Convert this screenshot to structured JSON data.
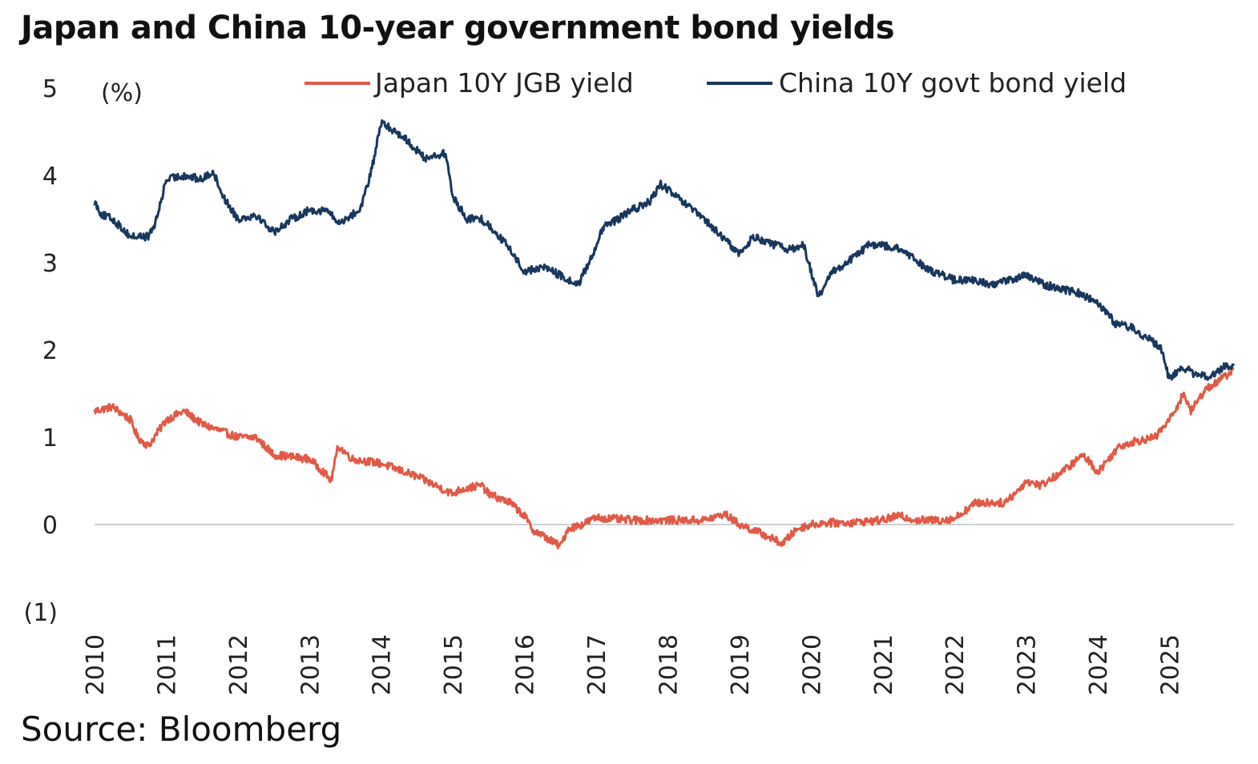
{
  "title": "Japan and China 10-year government bond yields",
  "source": "Source: Bloomberg",
  "chart_data": {
    "type": "line",
    "title": "Japan and China 10-year government bond yields",
    "ylabel": "(%)",
    "ylim": [
      -1,
      5
    ],
    "yticks": [
      5,
      4,
      3,
      2,
      1,
      0,
      -1
    ],
    "ytick_labels": [
      "5",
      "4",
      "3",
      "2",
      "1",
      "0",
      "(1)"
    ],
    "xlim": [
      2010,
      2025.9
    ],
    "xticks": [
      2010,
      2011,
      2012,
      2013,
      2014,
      2015,
      2016,
      2017,
      2018,
      2019,
      2020,
      2021,
      2022,
      2023,
      2024,
      2025
    ],
    "xtick_labels": [
      "2010",
      "2011",
      "2012",
      "2013",
      "2014",
      "2015",
      "2016",
      "2017",
      "2018",
      "2019",
      "2020",
      "2021",
      "2022",
      "2023",
      "2024",
      "2025"
    ],
    "zero_line": true,
    "legend_position": "top",
    "series": [
      {
        "name": "Japan 10Y JGB yield",
        "color": "#e05a45",
        "x": [
          2010.0,
          2010.25,
          2010.5,
          2010.6,
          2010.75,
          2011.0,
          2011.25,
          2011.5,
          2012.0,
          2012.25,
          2012.5,
          2013.0,
          2013.2,
          2013.3,
          2013.4,
          2013.6,
          2014.0,
          2014.5,
          2015.0,
          2015.1,
          2015.4,
          2015.5,
          2015.8,
          2016.0,
          2016.1,
          2016.3,
          2016.5,
          2016.6,
          2016.8,
          2017.0,
          2017.5,
          2018.0,
          2018.5,
          2018.8,
          2019.0,
          2019.3,
          2019.6,
          2019.8,
          2020.0,
          2020.2,
          2020.5,
          2021.0,
          2021.2,
          2021.5,
          2021.8,
          2022.0,
          2022.3,
          2022.7,
          2022.9,
          2023.0,
          2023.2,
          2023.5,
          2023.8,
          2024.0,
          2024.1,
          2024.3,
          2024.5,
          2024.8,
          2025.0,
          2025.2,
          2025.3,
          2025.5,
          2025.7,
          2025.9
        ],
        "values": [
          1.3,
          1.35,
          1.2,
          1.0,
          0.9,
          1.2,
          1.3,
          1.15,
          1.0,
          1.0,
          0.8,
          0.75,
          0.6,
          0.5,
          0.9,
          0.75,
          0.7,
          0.55,
          0.35,
          0.4,
          0.45,
          0.35,
          0.25,
          0.1,
          -0.05,
          -0.15,
          -0.25,
          -0.05,
          0.0,
          0.08,
          0.05,
          0.05,
          0.05,
          0.12,
          0.0,
          -0.1,
          -0.22,
          -0.05,
          0.0,
          0.02,
          0.02,
          0.05,
          0.1,
          0.05,
          0.05,
          0.07,
          0.25,
          0.25,
          0.4,
          0.5,
          0.45,
          0.6,
          0.8,
          0.6,
          0.7,
          0.9,
          0.95,
          1.0,
          1.2,
          1.5,
          1.3,
          1.55,
          1.65,
          1.78
        ]
      },
      {
        "name": "China 10Y govt bond yield",
        "color": "#17375e",
        "x": [
          2010.0,
          2010.1,
          2010.25,
          2010.5,
          2010.75,
          2010.85,
          2011.0,
          2011.25,
          2011.5,
          2011.65,
          2011.8,
          2012.0,
          2012.25,
          2012.5,
          2012.75,
          2013.0,
          2013.25,
          2013.4,
          2013.7,
          2013.85,
          2014.0,
          2014.3,
          2014.6,
          2014.9,
          2015.0,
          2015.2,
          2015.4,
          2015.6,
          2015.8,
          2016.0,
          2016.3,
          2016.6,
          2016.75,
          2016.9,
          2017.1,
          2017.3,
          2017.5,
          2017.75,
          2017.9,
          2018.2,
          2018.5,
          2018.75,
          2019.0,
          2019.2,
          2019.5,
          2019.7,
          2019.9,
          2020.1,
          2020.3,
          2020.5,
          2020.8,
          2021.0,
          2021.25,
          2021.5,
          2021.7,
          2022.0,
          2022.25,
          2022.5,
          2022.75,
          2023.0,
          2023.25,
          2023.5,
          2023.75,
          2024.0,
          2024.25,
          2024.5,
          2024.75,
          2024.9,
          2025.0,
          2025.1,
          2025.2,
          2025.4,
          2025.6,
          2025.75,
          2025.9
        ],
        "values": [
          3.7,
          3.55,
          3.5,
          3.3,
          3.3,
          3.45,
          3.95,
          4.0,
          3.95,
          4.05,
          3.75,
          3.5,
          3.55,
          3.35,
          3.5,
          3.6,
          3.6,
          3.45,
          3.6,
          4.0,
          4.6,
          4.45,
          4.2,
          4.25,
          3.75,
          3.5,
          3.5,
          3.35,
          3.15,
          2.9,
          2.95,
          2.8,
          2.75,
          3.0,
          3.4,
          3.5,
          3.6,
          3.7,
          3.9,
          3.7,
          3.5,
          3.3,
          3.1,
          3.3,
          3.2,
          3.15,
          3.2,
          2.6,
          2.9,
          3.0,
          3.2,
          3.2,
          3.15,
          3.0,
          2.9,
          2.8,
          2.8,
          2.75,
          2.8,
          2.85,
          2.75,
          2.7,
          2.65,
          2.55,
          2.3,
          2.25,
          2.1,
          2.0,
          1.65,
          1.75,
          1.8,
          1.7,
          1.7,
          1.8,
          1.82
        ]
      }
    ]
  }
}
